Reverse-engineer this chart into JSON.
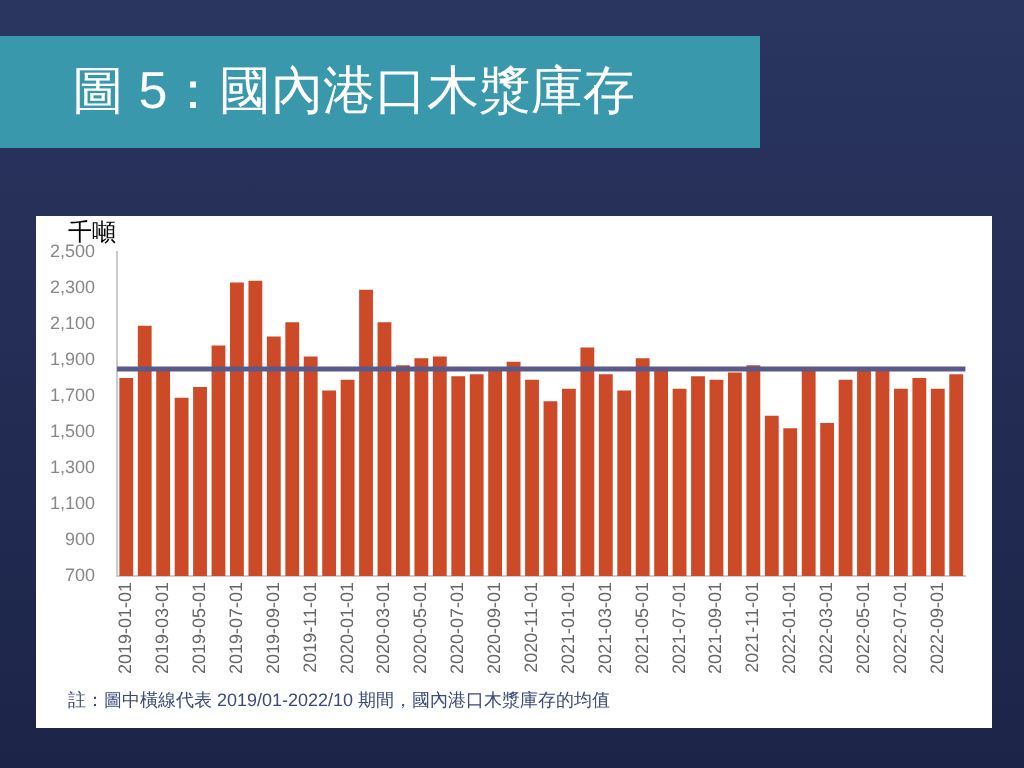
{
  "chart_data": {
    "type": "bar",
    "title": "圖 5：國內港口木漿庫存",
    "ylabel": "千噸",
    "categories": [
      "2019-01-01",
      null,
      "2019-03-01",
      null,
      "2019-05-01",
      null,
      "2019-07-01",
      null,
      "2019-09-01",
      null,
      "2019-11-01",
      null,
      "2020-01-01",
      null,
      "2020-03-01",
      null,
      "2020-05-01",
      null,
      "2020-07-01",
      null,
      "2020-09-01",
      null,
      "2020-11-01",
      null,
      "2021-01-01",
      null,
      "2021-03-01",
      null,
      "2021-05-01",
      null,
      "2021-07-01",
      null,
      "2021-09-01",
      null,
      "2021-11-01",
      null,
      "2022-01-01",
      null,
      "2022-03-01",
      null,
      "2022-05-01",
      null,
      "2022-07-01",
      null,
      "2022-09-01",
      null
    ],
    "values": [
      1800,
      2090,
      1850,
      1690,
      1750,
      1980,
      2330,
      2340,
      2030,
      2110,
      1920,
      1730,
      1790,
      2290,
      2110,
      1870,
      1910,
      1920,
      1810,
      1820,
      1850,
      1890,
      1790,
      1670,
      1740,
      1970,
      1820,
      1730,
      1910,
      1840,
      1740,
      1810,
      1790,
      1830,
      1870,
      1590,
      1520,
      1850,
      1550,
      1790,
      1860,
      1840,
      1740,
      1800,
      1740,
      1820
    ],
    "color": "#cc4a28",
    "ylim": [
      700,
      2500
    ],
    "yticks": [
      700,
      900,
      {
        "value": 1100,
        "label": "1,100"
      },
      {
        "value": 1300,
        "label": "1,300"
      },
      {
        "value": 1500,
        "label": "1,500"
      },
      {
        "value": 1700,
        "label": "1,700"
      },
      {
        "value": 1900,
        "label": "1,900"
      },
      {
        "value": 2100,
        "label": "2,100"
      },
      {
        "value": 2300,
        "label": "2,300"
      },
      {
        "value": 2500,
        "label": "2,500"
      }
    ],
    "grid": false,
    "ref_lines": [
      {
        "axis": "y",
        "value": 1850,
        "color": "#5a5a8a"
      }
    ],
    "annotations": [
      "註：圖中橫線代表 2019/01-2022/10 期間，國內港口木漿庫存的均值"
    ]
  }
}
